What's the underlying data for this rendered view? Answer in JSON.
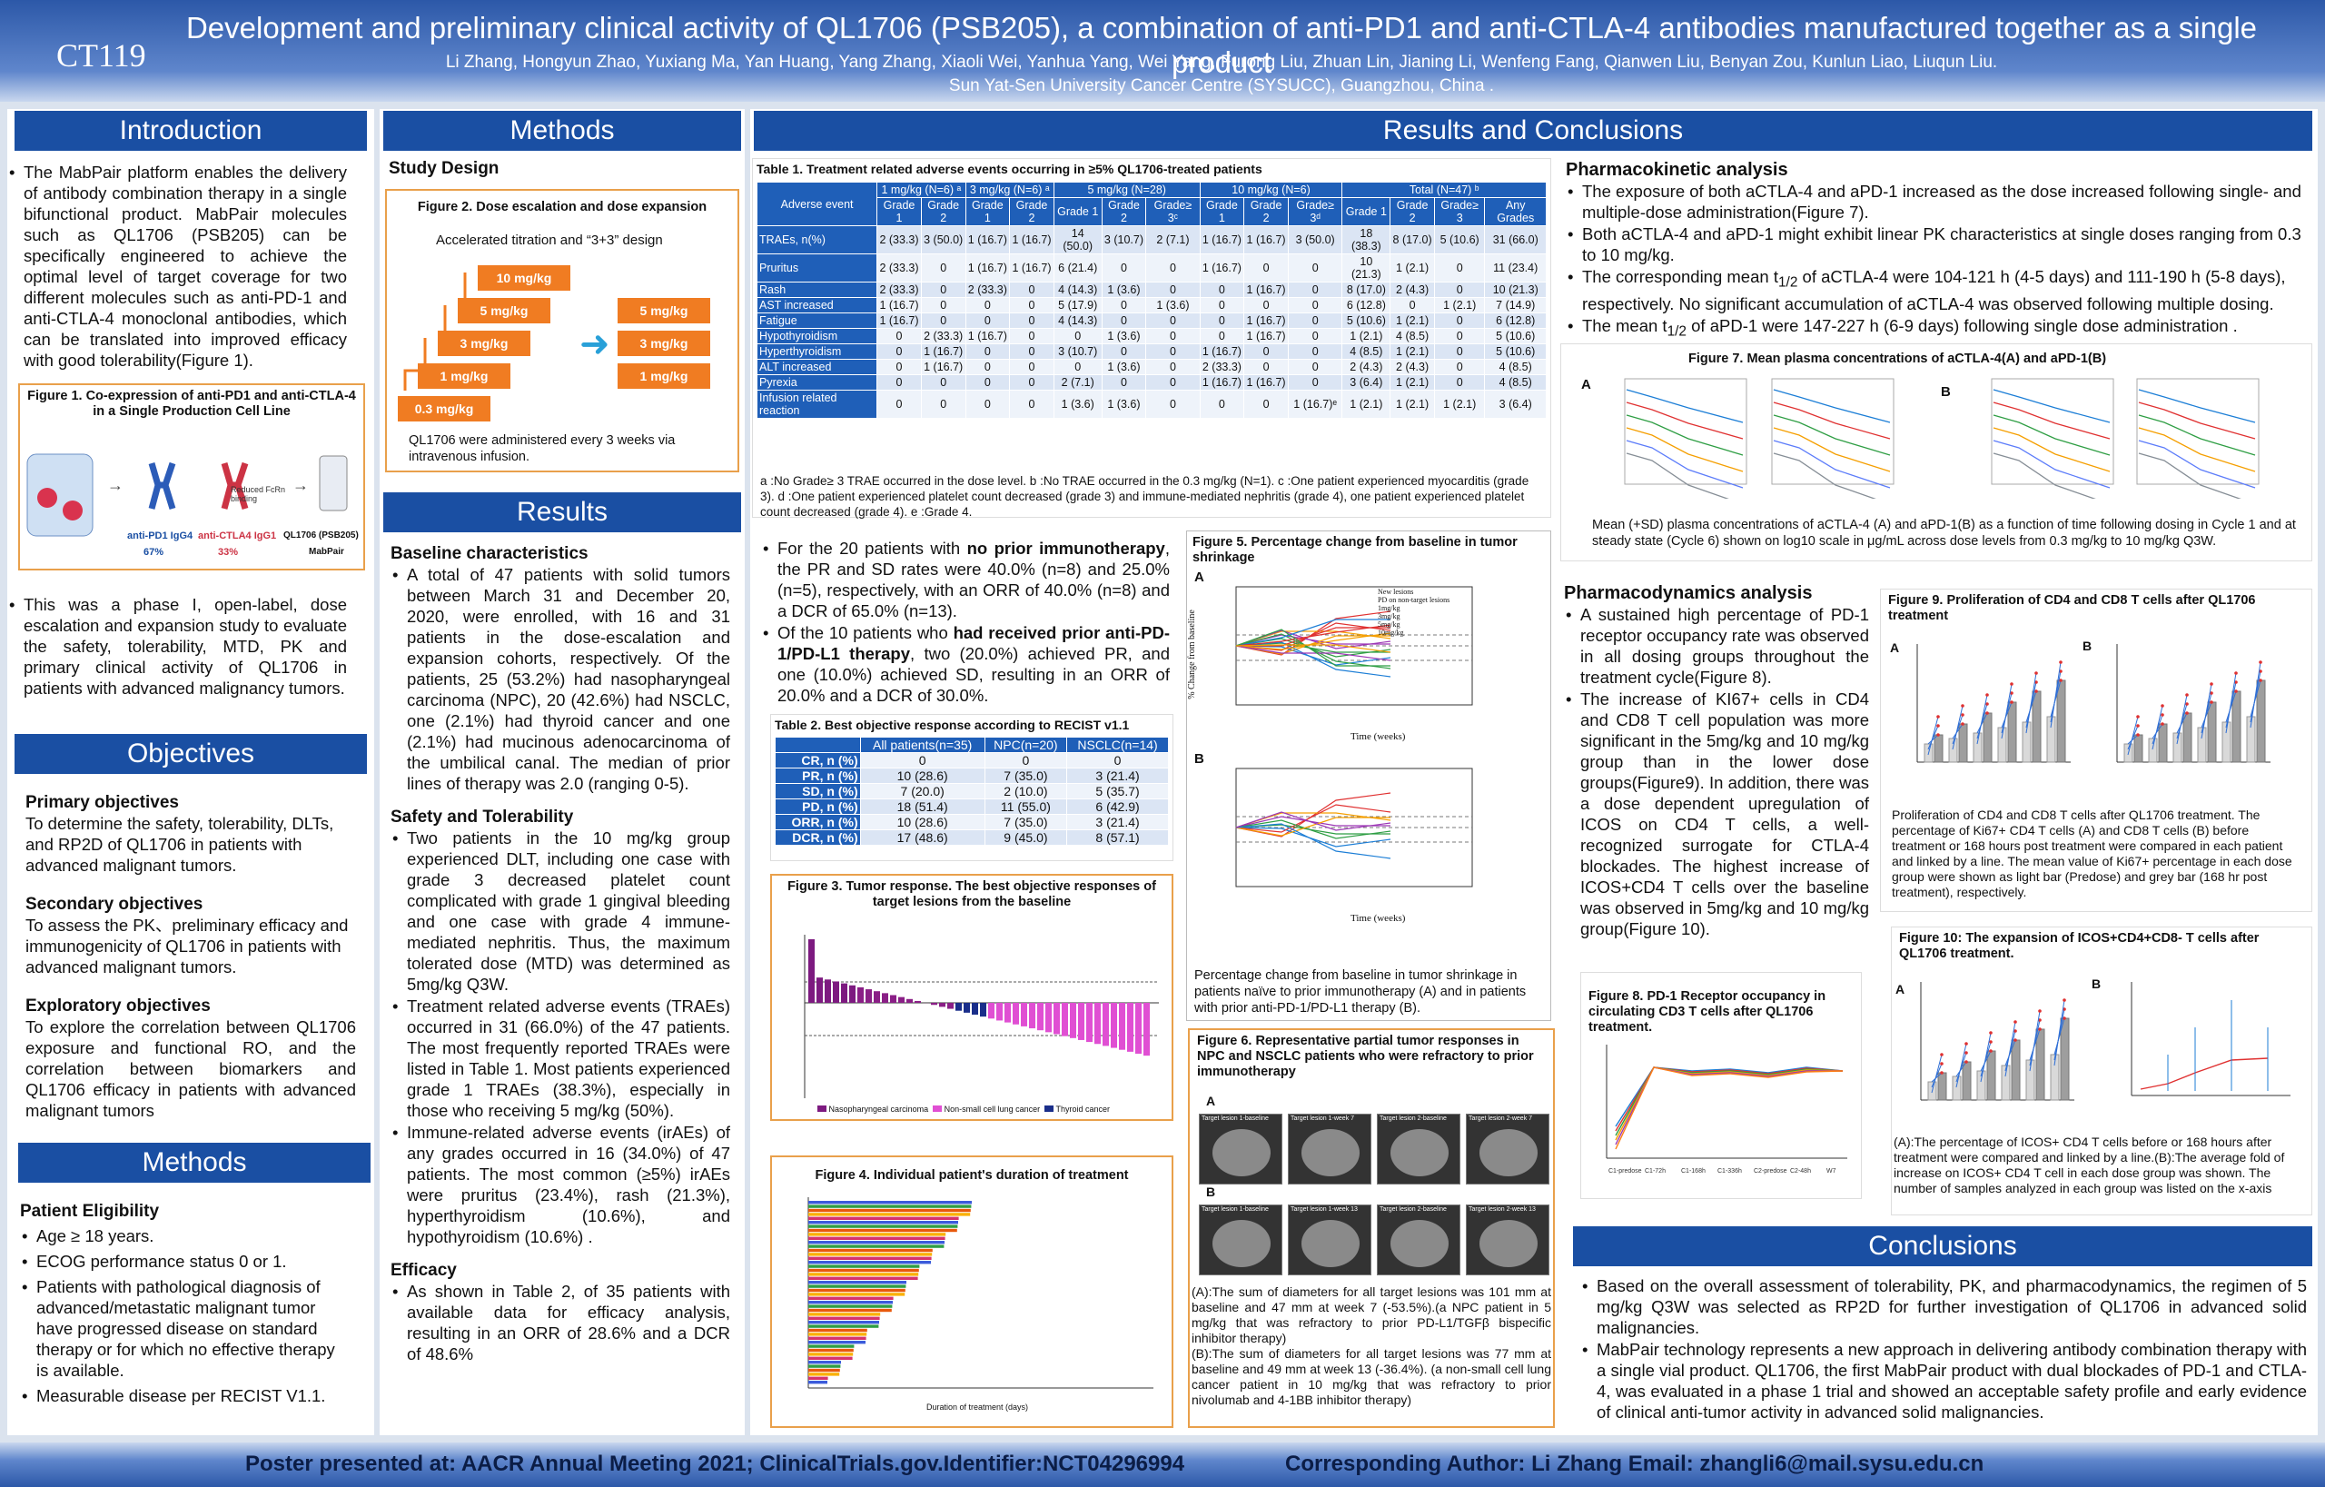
{
  "header": {
    "code": "CT119",
    "title": "Development and preliminary clinical activity of QL1706 (PSB205), a combination of anti-PD1 and anti-CTLA-4 antibodies manufactured together as a single product",
    "authors": "Li Zhang, Hongyun Zhao, Yuxiang Ma, Yan Huang, Yang Zhang, Xiaoli Wei, Yanhua Yang, Wei Yang, Furong Liu, Zhuan Lin, Jianing Li, Wenfeng Fang, Qianwen Liu, Benyan Zou, Kunlun Liao, Liuqun Liu.",
    "institution": "Sun Yat-Sen University Cancer Centre (SYSUCC), Guangzhou, China ."
  },
  "intro": {
    "heading": "Introduction",
    "p1": "The MabPair platform enables the delivery of antibody combination therapy in a single bifunctional product. MabPair molecules such as QL1706 (PSB205) can be specifically engineered to achieve the optimal level of target coverage for two different molecules such as anti-PD-1 and anti-CTLA-4 monoclonal antibodies, which can be translated into improved efficacy with good tolerability(Figure 1).",
    "fig1_title": "Figure 1. Co-expression of anti-PD1 and anti-CTLA-4 in a Single Production Cell Line",
    "fig1_l1": "anti-PD1 IgG4",
    "fig1_p1": "67%",
    "fig1_l2": "anti-CTLA4 IgG1",
    "fig1_p2": "33%",
    "fig1_l3": "QL1706 (PSB205)",
    "fig1_l4": "MabPair",
    "fig1_note": "Reduced FcRn binding",
    "p2": "This was a phase I, open-label, dose escalation and expansion study to evaluate the safety, tolerability, MTD, PK and primary clinical activity of QL1706 in patients with advanced malignancy tumors."
  },
  "objectives": {
    "heading": "Objectives",
    "primary_h": "Primary objectives",
    "primary": "To determine the safety, tolerability, DLTs, and RP2D of QL1706 in patients with advanced malignant tumors.",
    "secondary_h": "Secondary objectives",
    "secondary": "To assess the PK、preliminary efficacy and immunogenicity of QL1706 in patients with advanced malignant tumors.",
    "exploratory_h": "Exploratory objectives",
    "exploratory": "To explore the correlation between QL1706 exposure and functional RO, and the correlation between biomarkers and QL1706 efficacy in patients with advanced malignant tumors"
  },
  "methods_left": {
    "heading": "Methods",
    "elig_h": "Patient Eligibility",
    "items": [
      "Age ≥ 18 years.",
      "ECOG performance status 0 or 1.",
      "Patients with pathological diagnosis of advanced/metastatic malignant tumor have progressed disease on standard therapy or for which no effective therapy is available.",
      "Measurable disease per RECIST V1.1."
    ]
  },
  "methods": {
    "heading": "Methods",
    "design_h": "Study Design",
    "fig2_title": "Figure 2. Dose escalation and dose expansion",
    "fig2_sub": "Accelerated titration and “3+3” design",
    "steps": [
      "0.3 mg/kg",
      "1 mg/kg",
      "3 mg/kg",
      "5 mg/kg",
      "10 mg/kg"
    ],
    "expansion": [
      "5 mg/kg",
      "3 mg/kg",
      "1 mg/kg"
    ],
    "fig2_note": "QL1706 were administered every 3 weeks via intravenous infusion."
  },
  "results": {
    "heading": "Results",
    "baseline_h": "Baseline characteristics",
    "baseline": "A total of 47 patients with solid tumors between March 31 and December 20, 2020, were enrolled, with 16 and 31 patients in the dose-escalation and expansion cohorts, respectively. Of the patients, 25 (53.2%) had nasopharyngeal carcinoma (NPC), 20 (42.6%) had NSCLC, one (2.1%) had thyroid cancer and one (2.1%) had mucinous adenocarcinoma of the umbilical canal. The median of prior lines of therapy was 2.0 (ranging 0-5).",
    "safety_h": "Safety and Tolerability",
    "safety": [
      "Two patients in the 10 mg/kg group experienced DLT, including one case with grade 3 decreased platelet count complicated with grade 1 gingival bleeding and one case with grade 4 immune-mediated nephritis. Thus, the maximum tolerated dose (MTD) was determined as 5mg/kg Q3W.",
      "Treatment related adverse events (TRAEs) occurred in 31 (66.0%) of the 47 patients. The most frequently reported TRAEs were listed in Table 1. Most patients experienced grade 1 TRAEs (38.3%), especially in those who receiving 5 mg/kg (50%).",
      "Immune-related adverse events (irAEs) of any grades occurred in 16 (34.0%) of 47 patients. The most common (≥5%) irAEs were pruritus (23.4%), rash (21.3%), hyperthyroidism (10.6%), and hypothyroidism (10.6%) ."
    ],
    "efficacy_h": "Efficacy",
    "efficacy": "As shown in Table 2, of 35 patients with available data for efficacy analysis, resulting in an ORR of 28.6% and a DCR of 48.6%"
  },
  "rc": {
    "heading": "Results and  Conclusions",
    "t1_title": "Table 1. Treatment related adverse events occurring in ≥5% QL1706-treated patients",
    "t1_groups": [
      "Adverse event",
      "1 mg/kg (N=6) ᵃ",
      "3 mg/kg (N=6) ᵃ",
      "5 mg/kg (N=28)",
      "10 mg/kg (N=6)",
      "Total (N=47) ᵇ"
    ],
    "t1_cols": [
      "Grade 1",
      "Grade 2",
      "Grade 1",
      "Grade 2",
      "Grade 1",
      "Grade 2",
      "Grade≥ 3ᶜ",
      "Grade 1",
      "Grade 2",
      "Grade≥ 3ᵈ",
      "Grade 1",
      "Grade 2",
      "Grade≥ 3",
      "Any Grades"
    ],
    "t1_rows": [
      [
        "TRAEs, n(%)",
        "2 (33.3)",
        "3 (50.0)",
        "1 (16.7)",
        "1 (16.7)",
        "14 (50.0)",
        "3 (10.7)",
        "2 (7.1)",
        "1 (16.7)",
        "1 (16.7)",
        "3 (50.0)",
        "18 (38.3)",
        "8 (17.0)",
        "5 (10.6)",
        "31 (66.0)"
      ],
      [
        "Pruritus",
        "2 (33.3)",
        "0",
        "1 (16.7)",
        "1 (16.7)",
        "6 (21.4)",
        "0",
        "0",
        "1 (16.7)",
        "0",
        "0",
        "10 (21.3)",
        "1 (2.1)",
        "0",
        "11 (23.4)"
      ],
      [
        "Rash",
        "2 (33.3)",
        "0",
        "2 (33.3)",
        "0",
        "4 (14.3)",
        "1 (3.6)",
        "0",
        "0",
        "1 (16.7)",
        "0",
        "8 (17.0)",
        "2 (4.3)",
        "0",
        "10 (21.3)"
      ],
      [
        "AST increased",
        "1 (16.7)",
        "0",
        "0",
        "0",
        "5 (17.9)",
        "0",
        "1 (3.6)",
        "0",
        "0",
        "0",
        "6 (12.8)",
        "0",
        "1 (2.1)",
        "7 (14.9)"
      ],
      [
        "Fatigue",
        "1 (16.7)",
        "0",
        "0",
        "0",
        "4 (14.3)",
        "0",
        "0",
        "0",
        "1 (16.7)",
        "0",
        "5 (10.6)",
        "1 (2.1)",
        "0",
        "6 (12.8)"
      ],
      [
        "Hypothyroidism",
        "0",
        "2 (33.3)",
        "1 (16.7)",
        "0",
        "0",
        "1 (3.6)",
        "0",
        "0",
        "1 (16.7)",
        "0",
        "1 (2.1)",
        "4 (8.5)",
        "0",
        "5 (10.6)"
      ],
      [
        "Hyperthyroidism",
        "0",
        "1 (16.7)",
        "0",
        "0",
        "3 (10.7)",
        "0",
        "0",
        "1 (16.7)",
        "0",
        "0",
        "4 (8.5)",
        "1 (2.1)",
        "0",
        "5 (10.6)"
      ],
      [
        "ALT increased",
        "0",
        "1 (16.7)",
        "0",
        "0",
        "0",
        "1 (3.6)",
        "0",
        "2 (33.3)",
        "0",
        "0",
        "2 (4.3)",
        "2 (4.3)",
        "0",
        "4 (8.5)"
      ],
      [
        "Pyrexia",
        "0",
        "0",
        "0",
        "0",
        "2 (7.1)",
        "0",
        "0",
        "1 (16.7)",
        "1 (16.7)",
        "0",
        "3 (6.4)",
        "1 (2.1)",
        "0",
        "4 (8.5)"
      ],
      [
        "Infusion related reaction",
        "0",
        "0",
        "0",
        "0",
        "1 (3.6)",
        "1 (3.6)",
        "0",
        "0",
        "0",
        "1 (16.7)ᵉ",
        "1 (2.1)",
        "1 (2.1)",
        "1 (2.1)",
        "3 (6.4)"
      ]
    ],
    "t1_note": "a :No Grade≥ 3 TRAE occurred in the dose level.  b :No TRAE occurred in the 0.3 mg/kg (N=1).  c :One patient experienced myocarditis (grade 3).  d :One patient experienced platelet count decreased (grade 3) and immune-mediated nephritis (grade 4), one patient experienced platelet count decreased (grade 4).   e :Grade 4.",
    "eff_items": [
      "For the 20 patients with no prior immunotherapy, the PR and SD rates were 40.0% (n=8) and 25.0% (n=5), respectively, with an ORR of 40.0% (n=8) and a DCR of 65.0% (n=13).",
      "Of the 10 patients who had received prior anti-PD-1/PD-L1 therapy, two (20.0%) achieved PR, and one (10.0%) achieved SD, resulting in an ORR of 20.0% and a DCR of 30.0%."
    ],
    "eff_bold": [
      "no prior immunotherapy",
      "had received prior anti-PD-1/PD-L1 therapy"
    ],
    "t2_title": "Table 2. Best objective response according to RECIST v1.1",
    "t2_cols": [
      "",
      "All patients(n=35)",
      "NPC(n=20)",
      "NSCLC(n=14)"
    ],
    "t2_rows": [
      [
        "CR, n (%)",
        "0",
        "0",
        "0"
      ],
      [
        "PR, n (%)",
        "10 (28.6)",
        "7 (35.0)",
        "3 (21.4)"
      ],
      [
        "SD, n (%)",
        "7 (20.0)",
        "2 (10.0)",
        "5 (35.7)"
      ],
      [
        "PD, n (%)",
        "18 (51.4)",
        "11 (55.0)",
        "6 (42.9)"
      ],
      [
        "ORR, n (%)",
        "10 (28.6)",
        "7 (35.0)",
        "3 (21.4)"
      ],
      [
        "DCR, n (%)",
        "17 (48.6)",
        "9 (45.0)",
        "8 (57.1)"
      ]
    ],
    "fig3_title": "Figure 3. Tumor response. The best objective responses of target lesions from the baseline",
    "fig3_legend": [
      "Nasopharyngeal carcinoma",
      "Non-small cell lung cancer",
      "Thyroid cancer"
    ],
    "fig4_title": "Figure 4. Individual patient's duration of treatment",
    "fig4_xlabel": "Duration of treatment (days)",
    "fig5_title": "Figure 5. Percentage change from baseline in tumor shrinkage",
    "fig5_ylabel": "% Change from baseline",
    "fig5_xlabel": "Time (weeks)",
    "fig5_legend": [
      "New lesions",
      "PD on non-target lesions",
      "1mg/kg",
      "3mg/kg",
      "5mg/kg",
      "10mg/kg"
    ],
    "fig5_cap": "Percentage change from baseline in tumor shrinkage in patients naïve to prior immunotherapy (A) and in patients with prior anti-PD-1/PD-L1 therapy (B).",
    "fig6_title": "Figure 6. Representative partial tumor responses in  NPC and NSCLC patients who were refractory to prior  immunotherapy",
    "fig6_a": [
      "Target lesion 1-baseline",
      "Target lesion 1-week 7",
      "Target lesion 2-baseline",
      "Target lesion 2-week 7"
    ],
    "fig6_b": [
      "Target lesion 1-baseline",
      "Target lesion 1-week 13",
      "Target lesion 2-baseline",
      "Target lesion 2-week 13"
    ],
    "fig6_cap": "(A):The sum of diameters for all target lesions was 101 mm at baseline and 47 mm at week 7 (-53.5%).(a NPC patient in 5 mg/kg that was refractory to prior PD-L1/TGFβ bispecific inhibitor therapy)\n(B):The sum of diameters for all target lesions was 77 mm at baseline and 49 mm at week 13 (-36.4%). (a non-small cell lung cancer patient in 10 mg/kg that was refractory to prior nivolumab and 4-1BB inhibitor therapy)"
  },
  "pk": {
    "heading": "Pharmacokinetic analysis",
    "items": [
      "The exposure of both aCTLA-4 and aPD-1 increased as the dose increased following single- and multiple-dose administration(Figure 7).",
      "Both aCTLA-4 and aPD-1 might exhibit linear PK characteristics at single doses ranging from 0.3 to 10 mg/kg.",
      "The corresponding mean t1/2 of aCTLA-4 were 104-121 h (4-5 days) and 111-190 h (5-8 days), respectively. No significant accumulation of aCTLA-4 was observed following multiple dosing.",
      "The mean t1/2 of aPD-1 were 147-227 h (6-9 days) following single dose administration ."
    ],
    "fig7_title": "Figure 7. Mean plasma concentrations of aCTLA-4(A)  and aPD-1(B)",
    "fig7_cap": "Mean (+SD) plasma concentrations of aCTLA-4 (A) and aPD-1(B) as a function of time following dosing in Cycle 1 and at steady state (Cycle 6) shown on log10 scale in μg/mL across dose levels from 0.3 mg/kg to 10 mg/kg Q3W."
  },
  "pd": {
    "heading": "Pharmacodynamics analysis",
    "items": [
      "A sustained high percentage of PD-1 receptor occupancy rate was observed in all dosing groups throughout the treatment cycle(Figure 8).",
      "The increase of KI67+ cells in CD4 and CD8 T cell population was more significant in the 5mg/kg and 10 mg/kg group than in the lower dose groups(Figure9). In addition, there was a dose dependent upregulation of ICOS on CD4 T cells, a well-recognized surrogate for CTLA-4 blockades. The highest increase of ICOS+CD4 T cells over the baseline was observed in 5mg/kg and 10 mg/kg group(Figure 10)."
    ],
    "fig8_title": "Figure 8. PD-1 Receptor occupancy in circulating CD3 T cells after QL1706 treatment.",
    "fig8_x": [
      "C1-predose",
      "C1-72h",
      "C1-168h",
      "C1-336h",
      "C2-predose",
      "C2-48h",
      "W7"
    ],
    "fig9_title": "Figure 9. Proliferation of CD4 and CD8 T cells after QL1706 treatment",
    "fig9_cap": "Proliferation of CD4 and CD8 T cells after QL1706 treatment. The percentage of Ki67+ CD4 T cells (A) and CD8 T cells (B) before treatment or 168 hours post treatment were compared in each patient and linked by a line. The mean value of Ki67+ percentage in each dose group were shown as light bar (Predose) and grey bar (168 hr post treatment), respectively.",
    "fig10_title": "Figure 10:  The expansion of ICOS+CD4+CD8- T cells after QL1706 treatment.",
    "fig10_cap": "(A):The percentage of ICOS+ CD4 T cells before or 168 hours after treatment were compared and linked by a line.(B):The average fold of increase on ICOS+ CD4 T cell in each dose group was shown.  The number of samples analyzed in each group was listed on the x-axis"
  },
  "conclusions": {
    "heading": "Conclusions",
    "items": [
      "Based on the overall assessment of tolerability, PK, and pharmacodynamics, the regimen of 5 mg/kg Q3W was selected as RP2D for further investigation of QL1706 in advanced solid malignancies.",
      "MabPair technology represents a new approach in delivering antibody combination therapy with a single vial product. QL1706, the first MabPair product with dual blockades of PD-1 and CTLA-4, was evaluated in a phase 1 trial and showed an acceptable safety profile and early evidence of clinical anti-tumor activity in advanced solid malignancies."
    ]
  },
  "footer": {
    "left": "Poster presented at: AACR Annual Meeting 2021; ClinicalTrials.gov.Identifier:NCT04296994",
    "right": "Corresponding Author: Li Zhang Email: zhangli6@mail.sysu.edu.cn"
  }
}
